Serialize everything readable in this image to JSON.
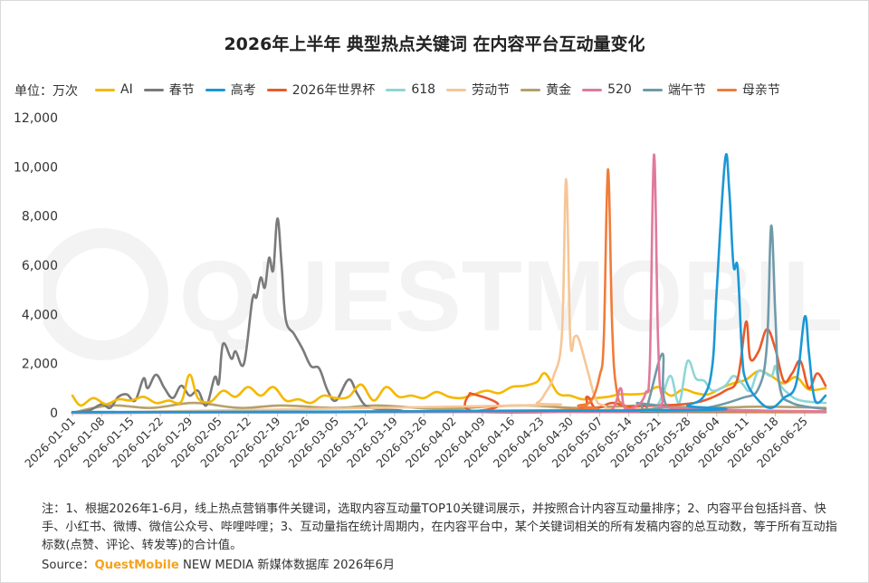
{
  "title": "2026年上半年 典型热点关键词 在内容平台互动量变化",
  "unit_label": "单位：万次",
  "notes": "注：1、根据2026年1-6月，线上热点营销事件关键词，选取内容互动量TOP10关键词展示，并按照合计内容互动量排序；2、内容平台包括抖音、快手、小红书、微博、微信公众号、哔哩哔哩；3、互动量指在统计周期内，在内容平台中，某个关键词相关的所有发稿内容的总互动数，等于所有互动指标数(点赞、评论、转发等)的合计值。",
  "source": {
    "prefix": "Source：",
    "brand": "QuestMobile",
    "suffix": "NEW MEDIA 新媒体数据库 2026年6月"
  },
  "watermark": "QUESTMOBILE",
  "chart_data": {
    "type": "line",
    "y_ticks": [
      "0",
      "2,000",
      "4,000",
      "6,000",
      "8,000",
      "10,000",
      "12,000"
    ],
    "ylim": [
      0,
      12000
    ],
    "x_tick_labels": [
      "2026-01-01",
      "2026-01-08",
      "2026-01-15",
      "2026-01-22",
      "2026-01-29",
      "2026-02-05",
      "2026-02-12",
      "2026-02-19",
      "2026-02-26",
      "2026-03-05",
      "2026-03-12",
      "2026-03-19",
      "2026-03-26",
      "2026-04-02",
      "2026-04-09",
      "2026-04-16",
      "2026-04-23",
      "2026-04-30",
      "2026-05-07",
      "2026-05-14",
      "2026-05-21",
      "2026-05-28",
      "2026-06-04",
      "2026-06-11",
      "2026-06-18",
      "2026-06-25"
    ],
    "x_start": "2026-01-01",
    "x_end": "2026-06-30",
    "legend_position": "top",
    "grid": false,
    "series": [
      {
        "name": "AI",
        "color": "#f5b800",
        "points": [
          [
            "2026-01-01",
            700
          ],
          [
            "2026-01-03",
            300
          ],
          [
            "2026-01-06",
            600
          ],
          [
            "2026-01-09",
            350
          ],
          [
            "2026-01-12",
            550
          ],
          [
            "2026-01-15",
            500
          ],
          [
            "2026-01-18",
            650
          ],
          [
            "2026-01-21",
            400
          ],
          [
            "2026-01-24",
            500
          ],
          [
            "2026-01-27",
            450
          ],
          [
            "2026-01-29",
            1550
          ],
          [
            "2026-01-31",
            600
          ],
          [
            "2026-02-03",
            450
          ],
          [
            "2026-02-06",
            900
          ],
          [
            "2026-02-09",
            650
          ],
          [
            "2026-02-12",
            1050
          ],
          [
            "2026-02-15",
            700
          ],
          [
            "2026-02-18",
            1050
          ],
          [
            "2026-02-21",
            500
          ],
          [
            "2026-02-24",
            550
          ],
          [
            "2026-02-27",
            400
          ],
          [
            "2026-03-02",
            700
          ],
          [
            "2026-03-05",
            600
          ],
          [
            "2026-03-08",
            650
          ],
          [
            "2026-03-11",
            1150
          ],
          [
            "2026-03-14",
            500
          ],
          [
            "2026-03-17",
            1050
          ],
          [
            "2026-03-20",
            650
          ],
          [
            "2026-03-23",
            700
          ],
          [
            "2026-03-26",
            600
          ],
          [
            "2026-03-29",
            850
          ],
          [
            "2026-04-01",
            650
          ],
          [
            "2026-04-04",
            600
          ],
          [
            "2026-04-07",
            750
          ],
          [
            "2026-04-10",
            900
          ],
          [
            "2026-04-13",
            800
          ],
          [
            "2026-04-16",
            1050
          ],
          [
            "2026-04-19",
            1100
          ],
          [
            "2026-04-22",
            1250
          ],
          [
            "2026-04-24",
            1600
          ],
          [
            "2026-04-27",
            800
          ],
          [
            "2026-04-30",
            700
          ],
          [
            "2026-05-03",
            550
          ],
          [
            "2026-05-06",
            600
          ],
          [
            "2026-05-09",
            650
          ],
          [
            "2026-05-12",
            750
          ],
          [
            "2026-05-15",
            750
          ],
          [
            "2026-05-18",
            800
          ],
          [
            "2026-05-21",
            1050
          ],
          [
            "2026-05-24",
            700
          ],
          [
            "2026-05-27",
            950
          ],
          [
            "2026-05-30",
            800
          ],
          [
            "2026-06-02",
            750
          ],
          [
            "2026-06-05",
            1000
          ],
          [
            "2026-06-08",
            1200
          ],
          [
            "2026-06-11",
            1350
          ],
          [
            "2026-06-14",
            1700
          ],
          [
            "2026-06-17",
            1500
          ],
          [
            "2026-06-20",
            1200
          ],
          [
            "2026-06-23",
            1450
          ],
          [
            "2026-06-26",
            950
          ],
          [
            "2026-06-30",
            1000
          ]
        ]
      },
      {
        "name": "春节",
        "color": "#7a7a7a",
        "points": [
          [
            "2026-01-01",
            0
          ],
          [
            "2026-01-05",
            100
          ],
          [
            "2026-01-08",
            350
          ],
          [
            "2026-01-10",
            200
          ],
          [
            "2026-01-12",
            650
          ],
          [
            "2026-01-14",
            750
          ],
          [
            "2026-01-16",
            500
          ],
          [
            "2026-01-18",
            1400
          ],
          [
            "2026-01-19",
            1000
          ],
          [
            "2026-01-21",
            1550
          ],
          [
            "2026-01-23",
            1000
          ],
          [
            "2026-01-25",
            600
          ],
          [
            "2026-01-27",
            1100
          ],
          [
            "2026-01-29",
            700
          ],
          [
            "2026-01-31",
            900
          ],
          [
            "2026-02-02",
            300
          ],
          [
            "2026-02-04",
            1450
          ],
          [
            "2026-02-05",
            1200
          ],
          [
            "2026-02-06",
            2800
          ],
          [
            "2026-02-08",
            2200
          ],
          [
            "2026-02-09",
            2500
          ],
          [
            "2026-02-11",
            2000
          ],
          [
            "2026-02-13",
            4600
          ],
          [
            "2026-02-14",
            4700
          ],
          [
            "2026-02-15",
            5500
          ],
          [
            "2026-02-16",
            5100
          ],
          [
            "2026-02-17",
            6300
          ],
          [
            "2026-02-18",
            5800
          ],
          [
            "2026-02-19",
            7900
          ],
          [
            "2026-02-20",
            6000
          ],
          [
            "2026-02-21",
            3800
          ],
          [
            "2026-02-23",
            3200
          ],
          [
            "2026-02-25",
            2600
          ],
          [
            "2026-02-27",
            1900
          ],
          [
            "2026-03-01",
            1800
          ],
          [
            "2026-03-03",
            900
          ],
          [
            "2026-03-05",
            500
          ],
          [
            "2026-03-08",
            1350
          ],
          [
            "2026-03-10",
            800
          ],
          [
            "2026-03-12",
            300
          ],
          [
            "2026-03-15",
            150
          ],
          [
            "2026-03-20",
            100
          ],
          [
            "2026-04-01",
            50
          ],
          [
            "2026-06-30",
            30
          ]
        ]
      },
      {
        "name": "高考",
        "color": "#1a98d5",
        "points": [
          [
            "2026-01-01",
            30
          ],
          [
            "2026-05-25",
            100
          ],
          [
            "2026-05-28",
            300
          ],
          [
            "2026-06-01",
            700
          ],
          [
            "2026-06-03",
            2000
          ],
          [
            "2026-06-04",
            5000
          ],
          [
            "2026-06-06",
            10300
          ],
          [
            "2026-06-07",
            9000
          ],
          [
            "2026-06-08",
            6000
          ],
          [
            "2026-06-09",
            5900
          ],
          [
            "2026-06-10",
            2500
          ],
          [
            "2026-06-11",
            1300
          ],
          [
            "2026-06-14",
            500
          ],
          [
            "2026-06-17",
            200
          ],
          [
            "2026-06-20",
            600
          ],
          [
            "2026-06-23",
            1200
          ],
          [
            "2026-06-25",
            3900
          ],
          [
            "2026-06-26",
            2500
          ],
          [
            "2026-06-27",
            900
          ],
          [
            "2026-06-28",
            400
          ],
          [
            "2026-06-30",
            700
          ]
        ]
      },
      {
        "name": "2026年世界杯",
        "color": "#ea5a2a",
        "points": [
          [
            "2026-01-01",
            20
          ],
          [
            "2026-04-05",
            50
          ],
          [
            "2026-04-06",
            800
          ],
          [
            "2026-04-07",
            50
          ],
          [
            "2026-05-01",
            100
          ],
          [
            "2026-05-04",
            650
          ],
          [
            "2026-05-06",
            200
          ],
          [
            "2026-05-10",
            400
          ],
          [
            "2026-05-14",
            250
          ],
          [
            "2026-05-20",
            300
          ],
          [
            "2026-05-27",
            350
          ],
          [
            "2026-06-01",
            500
          ],
          [
            "2026-06-06",
            900
          ],
          [
            "2026-06-09",
            1400
          ],
          [
            "2026-06-11",
            3700
          ],
          [
            "2026-06-12",
            2200
          ],
          [
            "2026-06-14",
            2500
          ],
          [
            "2026-06-16",
            3400
          ],
          [
            "2026-06-18",
            2600
          ],
          [
            "2026-06-20",
            1300
          ],
          [
            "2026-06-22",
            1600
          ],
          [
            "2026-06-24",
            2100
          ],
          [
            "2026-06-26",
            1000
          ],
          [
            "2026-06-28",
            1600
          ],
          [
            "2026-06-30",
            1100
          ]
        ]
      },
      {
        "name": "618",
        "color": "#8ed6d6",
        "points": [
          [
            "2026-01-01",
            0
          ],
          [
            "2026-05-15",
            100
          ],
          [
            "2026-05-20",
            200
          ],
          [
            "2026-05-22",
            700
          ],
          [
            "2026-05-24",
            1500
          ],
          [
            "2026-05-26",
            400
          ],
          [
            "2026-05-28",
            2100
          ],
          [
            "2026-05-30",
            1400
          ],
          [
            "2026-06-01",
            1300
          ],
          [
            "2026-06-03",
            900
          ],
          [
            "2026-06-06",
            1100
          ],
          [
            "2026-06-08",
            1500
          ],
          [
            "2026-06-10",
            1200
          ],
          [
            "2026-06-12",
            900
          ],
          [
            "2026-06-14",
            1700
          ],
          [
            "2026-06-17",
            1500
          ],
          [
            "2026-06-18",
            1900
          ],
          [
            "2026-06-19",
            1200
          ],
          [
            "2026-06-21",
            800
          ],
          [
            "2026-06-24",
            500
          ],
          [
            "2026-06-30",
            400
          ]
        ]
      },
      {
        "name": "劳动节",
        "color": "#f7c697",
        "points": [
          [
            "2026-01-01",
            0
          ],
          [
            "2026-04-18",
            300
          ],
          [
            "2026-04-22",
            400
          ],
          [
            "2026-04-24",
            800
          ],
          [
            "2026-04-26",
            1500
          ],
          [
            "2026-04-28",
            3200
          ],
          [
            "2026-04-29",
            9500
          ],
          [
            "2026-04-30",
            3000
          ],
          [
            "2026-05-01",
            3100
          ],
          [
            "2026-05-02",
            3000
          ],
          [
            "2026-05-04",
            1800
          ],
          [
            "2026-05-06",
            600
          ],
          [
            "2026-05-08",
            300
          ],
          [
            "2026-05-15",
            100
          ],
          [
            "2026-06-30",
            50
          ]
        ]
      },
      {
        "name": "黄金",
        "color": "#b5a06a",
        "points": [
          [
            "2026-01-01",
            0
          ],
          [
            "2026-01-10",
            300
          ],
          [
            "2026-01-20",
            200
          ],
          [
            "2026-01-30",
            400
          ],
          [
            "2026-02-10",
            200
          ],
          [
            "2026-02-20",
            300
          ],
          [
            "2026-03-05",
            200
          ],
          [
            "2026-03-15",
            300
          ],
          [
            "2026-03-30",
            150
          ],
          [
            "2026-04-10",
            250
          ],
          [
            "2026-04-20",
            300
          ],
          [
            "2026-05-01",
            200
          ],
          [
            "2026-05-10",
            250
          ],
          [
            "2026-05-20",
            300
          ],
          [
            "2026-06-01",
            200
          ],
          [
            "2026-06-15",
            250
          ],
          [
            "2026-06-30",
            200
          ]
        ]
      },
      {
        "name": "520",
        "color": "#e07a9c",
        "points": [
          [
            "2026-01-01",
            0
          ],
          [
            "2026-05-05",
            50
          ],
          [
            "2026-05-10",
            150
          ],
          [
            "2026-05-12",
            1000
          ],
          [
            "2026-05-13",
            200
          ],
          [
            "2026-05-16",
            300
          ],
          [
            "2026-05-18",
            800
          ],
          [
            "2026-05-19",
            2000
          ],
          [
            "2026-05-20",
            10500
          ],
          [
            "2026-05-21",
            2800
          ],
          [
            "2026-05-22",
            600
          ],
          [
            "2026-05-25",
            200
          ],
          [
            "2026-06-30",
            50
          ]
        ]
      },
      {
        "name": "端午节",
        "color": "#6f9aa9",
        "points": [
          [
            "2026-01-01",
            0
          ],
          [
            "2026-05-10",
            100
          ],
          [
            "2026-05-16",
            400
          ],
          [
            "2026-05-18",
            100
          ],
          [
            "2026-05-22",
            2400
          ],
          [
            "2026-05-23",
            300
          ],
          [
            "2026-06-01",
            200
          ],
          [
            "2026-06-10",
            600
          ],
          [
            "2026-06-14",
            1000
          ],
          [
            "2026-06-16",
            2800
          ],
          [
            "2026-06-17",
            7600
          ],
          [
            "2026-06-18",
            4000
          ],
          [
            "2026-06-19",
            1100
          ],
          [
            "2026-06-22",
            400
          ],
          [
            "2026-06-30",
            150
          ]
        ]
      },
      {
        "name": "母亲节",
        "color": "#f07c3a",
        "points": [
          [
            "2026-01-01",
            0
          ],
          [
            "2026-04-25",
            100
          ],
          [
            "2026-05-02",
            300
          ],
          [
            "2026-05-05",
            500
          ],
          [
            "2026-05-07",
            1500
          ],
          [
            "2026-05-08",
            3000
          ],
          [
            "2026-05-09",
            9900
          ],
          [
            "2026-05-10",
            3500
          ],
          [
            "2026-05-11",
            1000
          ],
          [
            "2026-05-13",
            300
          ],
          [
            "2026-05-20",
            100
          ],
          [
            "2026-06-30",
            50
          ]
        ]
      }
    ]
  }
}
